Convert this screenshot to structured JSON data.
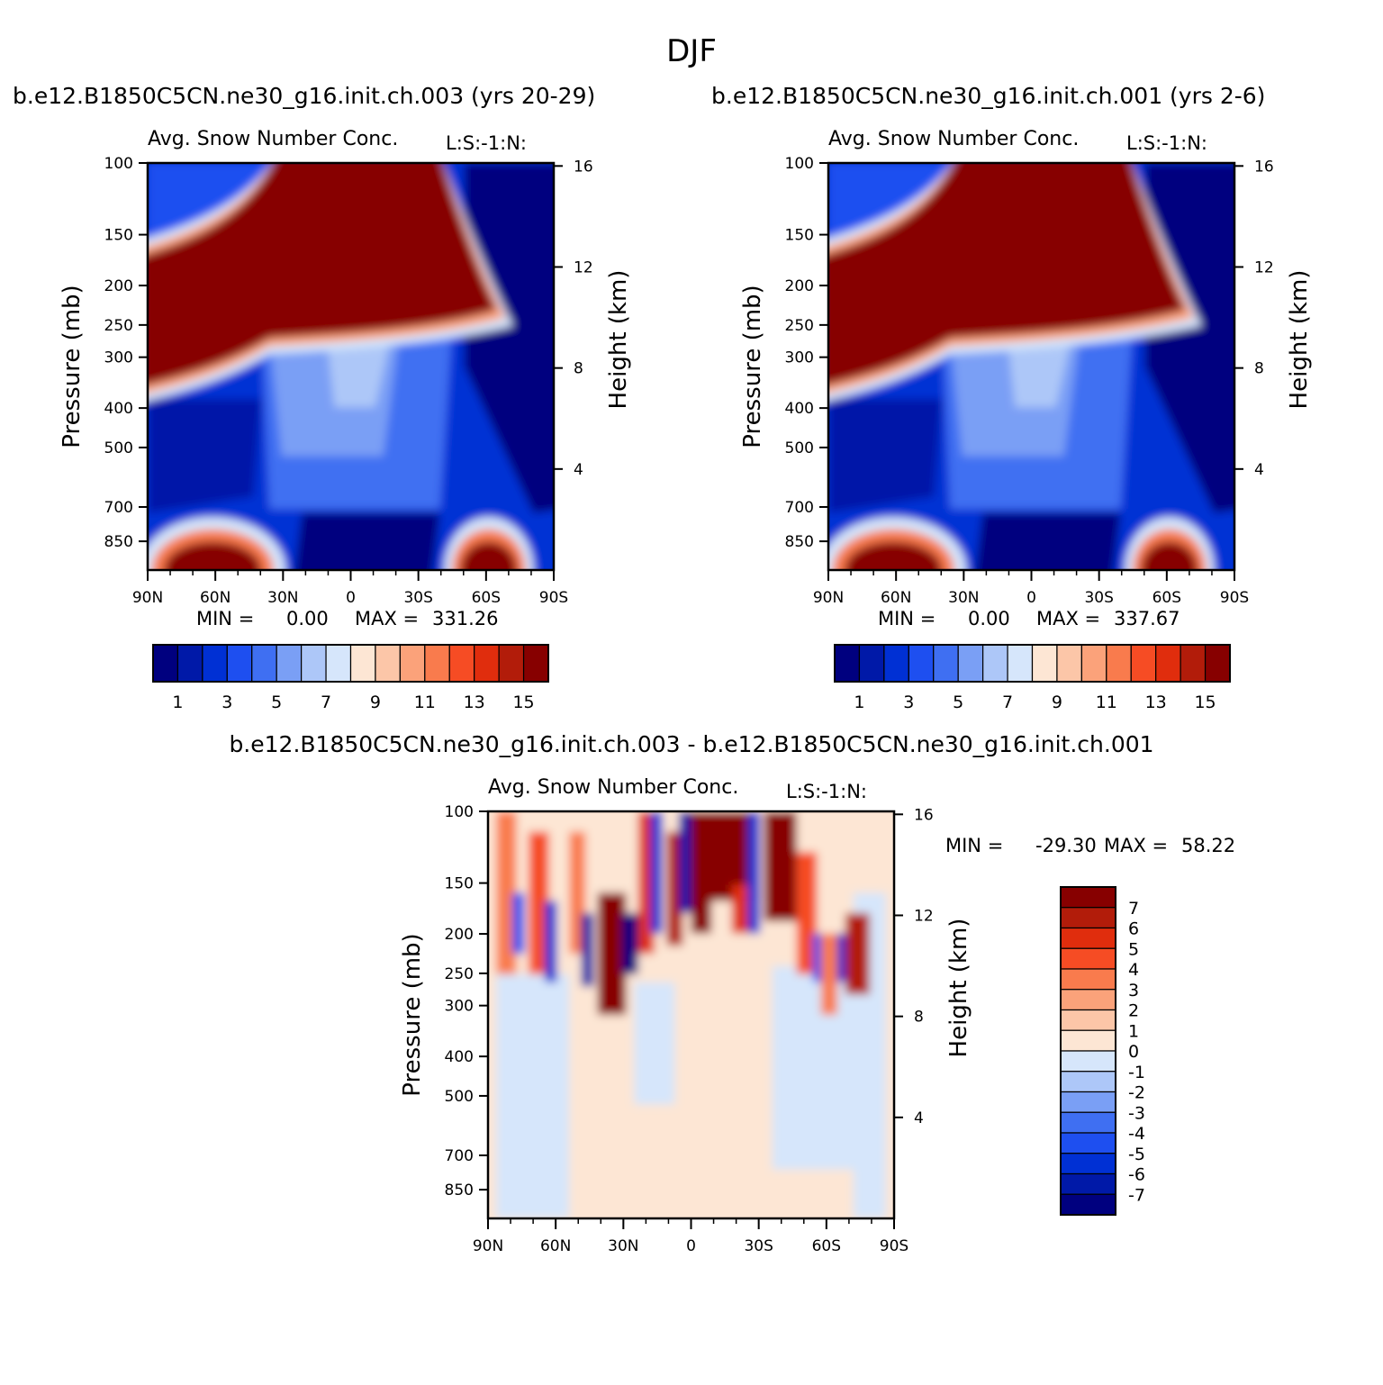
{
  "figure": {
    "title": "DJF"
  },
  "colors": {
    "abs_levels": [
      "#00007f",
      "#0019a8",
      "#0030d4",
      "#1e4ff0",
      "#3f6ff2",
      "#7a9ff5",
      "#adc7f8",
      "#d6e6fb",
      "#fde6d4",
      "#fcc6a8",
      "#fba27a",
      "#f97b4d",
      "#f64c24",
      "#e02d0d",
      "#b21c0a",
      "#870000"
    ],
    "diff_levels": [
      "#00007f",
      "#0019a8",
      "#0030d4",
      "#1e4ff0",
      "#3f6ff2",
      "#7a9ff5",
      "#adc7f8",
      "#d6e6fb",
      "#fde6d4",
      "#fcc6a8",
      "#fba27a",
      "#f97b4d",
      "#f64c24",
      "#e02d0d",
      "#b21c0a",
      "#870000"
    ]
  },
  "chart_data": [
    {
      "type": "heatmap",
      "title": "b.e12.B1850C5CN.ne30_g16.init.ch.003 (yrs 20-29)",
      "subtitle_left": "Avg. Snow Number Conc.",
      "subtitle_right": "L:S:-1:N:",
      "ylabel": "Pressure (mb)",
      "ylabel_right": "Height (km)",
      "x_ticks": [
        "90N",
        "60N",
        "30N",
        "0",
        "30S",
        "60S",
        "90S"
      ],
      "y_ticks": [
        "100",
        "150",
        "200",
        "250",
        "300",
        "400",
        "500",
        "700",
        "850"
      ],
      "y2_ticks": [
        "16",
        "12",
        "8",
        "4"
      ],
      "y_range": [
        100,
        1000
      ],
      "y_scale": "log",
      "stats": {
        "min_label": "MIN =",
        "min": "0.00",
        "max_label": "MAX =",
        "max": "331.26"
      },
      "colorbar_labels": [
        "1",
        "3",
        "5",
        "7",
        "9",
        "11",
        "13",
        "15"
      ],
      "pattern": "dense upper-troposphere band 150-250 mb from 90N to 65S, deep blue polar columns south of 60S, red low-level maxima near 60N and 60S, light blue mid-troposphere over tropics"
    },
    {
      "type": "heatmap",
      "title": "b.e12.B1850C5CN.ne30_g16.init.ch.001 (yrs 2-6)",
      "subtitle_left": "Avg. Snow Number Conc.",
      "subtitle_right": "L:S:-1:N:",
      "ylabel": "Pressure (mb)",
      "ylabel_right": "Height (km)",
      "x_ticks": [
        "90N",
        "60N",
        "30N",
        "0",
        "30S",
        "60S",
        "90S"
      ],
      "y_ticks": [
        "100",
        "150",
        "200",
        "250",
        "300",
        "400",
        "500",
        "700",
        "850"
      ],
      "y2_ticks": [
        "16",
        "12",
        "8",
        "4"
      ],
      "y_range": [
        100,
        1000
      ],
      "y_scale": "log",
      "stats": {
        "min_label": "MIN =",
        "min": "0.00",
        "max_label": "MAX =",
        "max": "337.67"
      },
      "colorbar_labels": [
        "1",
        "3",
        "5",
        "7",
        "9",
        "11",
        "13",
        "15"
      ],
      "pattern": "nearly identical to first panel"
    },
    {
      "type": "heatmap",
      "title": "b.e12.B1850C5CN.ne30_g16.init.ch.003 - b.e12.B1850C5CN.ne30_g16.init.ch.001",
      "subtitle_left": "Avg. Snow Number Conc.",
      "subtitle_right": "L:S:-1:N:",
      "ylabel": "Pressure (mb)",
      "ylabel_right": "Height (km)",
      "x_ticks": [
        "90N",
        "60N",
        "30N",
        "0",
        "30S",
        "60S",
        "90S"
      ],
      "y_ticks": [
        "100",
        "150",
        "200",
        "250",
        "300",
        "400",
        "500",
        "700",
        "850"
      ],
      "y2_ticks": [
        "16",
        "12",
        "8",
        "4"
      ],
      "y_range": [
        100,
        1000
      ],
      "y_scale": "log",
      "stats": {
        "min_label": "MIN =",
        "min": "-29.30",
        "max_label": "MAX =",
        "max": "58.22"
      },
      "colorbar_labels": [
        "7",
        "6",
        "5",
        "4",
        "3",
        "2",
        "1",
        "0",
        "-1",
        "-2",
        "-3",
        "-4",
        "-5",
        "-6",
        "-7"
      ],
      "pattern": "alternating red/blue vertical streaks between 100-300 mb, near-zero light shades below"
    }
  ]
}
